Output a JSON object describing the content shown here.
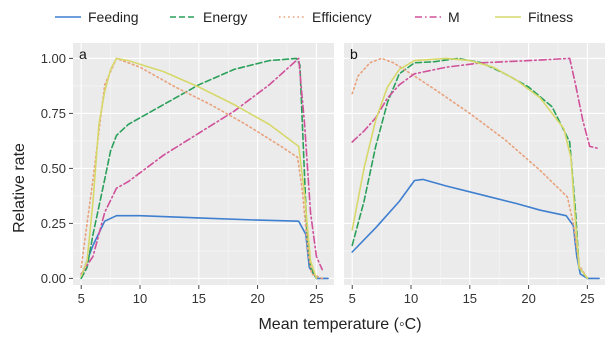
{
  "chart_data": {
    "type": "line",
    "xlabel": "Mean temperature (◦C)",
    "ylabel": "Relative rate",
    "xlim": [
      4.3,
      26.5
    ],
    "ylim": [
      -0.03,
      1.07
    ],
    "x_ticks": [
      5,
      10,
      15,
      20,
      25
    ],
    "y_ticks": [
      0.0,
      0.25,
      0.5,
      0.75,
      1.0
    ],
    "y_tick_labels": [
      "0.00",
      "0.25",
      "0.50",
      "0.75",
      "1.00"
    ],
    "legend": {
      "placement": "top",
      "entries": [
        {
          "name": "Feeding",
          "color": "#3f7fcf",
          "dash": "solid"
        },
        {
          "name": "Energy",
          "color": "#2aa05a",
          "dash": "dashed"
        },
        {
          "name": "Efficiency",
          "color": "#e8a17a",
          "dash": "dotted"
        },
        {
          "name": "M",
          "color": "#d0509a",
          "dash": "dashdot"
        },
        {
          "name": "Fitness",
          "color": "#d7d86a",
          "dash": "solid"
        }
      ]
    },
    "panels": [
      {
        "label": "a",
        "series": [
          {
            "name": "Feeding",
            "points": [
              [
                5,
                0.01
              ],
              [
                6,
                0.15
              ],
              [
                7,
                0.26
              ],
              [
                8,
                0.285
              ],
              [
                10,
                0.285
              ],
              [
                15,
                0.275
              ],
              [
                20,
                0.265
              ],
              [
                23.5,
                0.26
              ],
              [
                24.1,
                0.2
              ],
              [
                24.4,
                0.05
              ],
              [
                25,
                0.0
              ],
              [
                26,
                0.0
              ]
            ]
          },
          {
            "name": "Energy",
            "points": [
              [
                5,
                0.0
              ],
              [
                5.5,
                0.05
              ],
              [
                6,
                0.2
              ],
              [
                7,
                0.45
              ],
              [
                7.5,
                0.58
              ],
              [
                8,
                0.65
              ],
              [
                9,
                0.7
              ],
              [
                12,
                0.79
              ],
              [
                15,
                0.88
              ],
              [
                18,
                0.95
              ],
              [
                21,
                0.99
              ],
              [
                23.3,
                1.0
              ],
              [
                23.6,
                0.97
              ],
              [
                24.2,
                0.2
              ],
              [
                24.5,
                0.05
              ],
              [
                25,
                0.0
              ]
            ]
          },
          {
            "name": "Efficiency",
            "points": [
              [
                5,
                0.05
              ],
              [
                6,
                0.45
              ],
              [
                7,
                0.88
              ],
              [
                8,
                1.0
              ],
              [
                10,
                0.96
              ],
              [
                13,
                0.87
              ],
              [
                16,
                0.79
              ],
              [
                19,
                0.7
              ],
              [
                22,
                0.6
              ],
              [
                23.4,
                0.55
              ],
              [
                23.8,
                0.4
              ],
              [
                24.3,
                0.12
              ],
              [
                24.6,
                0.02
              ],
              [
                25.5,
                0.0
              ]
            ]
          },
          {
            "name": "M",
            "points": [
              [
                5,
                0.02
              ],
              [
                6,
                0.1
              ],
              [
                7,
                0.3
              ],
              [
                8,
                0.41
              ],
              [
                9,
                0.44
              ],
              [
                12,
                0.56
              ],
              [
                15,
                0.66
              ],
              [
                18,
                0.76
              ],
              [
                21,
                0.88
              ],
              [
                23.5,
                1.0
              ],
              [
                24,
                0.7
              ],
              [
                24.5,
                0.3
              ],
              [
                25,
                0.1
              ],
              [
                25.5,
                0.04
              ]
            ]
          },
          {
            "name": "Fitness",
            "points": [
              [
                5,
                0.01
              ],
              [
                5.5,
                0.08
              ],
              [
                6,
                0.35
              ],
              [
                6.5,
                0.7
              ],
              [
                7,
                0.85
              ],
              [
                7.5,
                0.95
              ],
              [
                8,
                1.0
              ],
              [
                9,
                0.99
              ],
              [
                12,
                0.94
              ],
              [
                15,
                0.87
              ],
              [
                18,
                0.79
              ],
              [
                21,
                0.7
              ],
              [
                23.5,
                0.6
              ],
              [
                24,
                0.38
              ],
              [
                24.5,
                0.08
              ],
              [
                25,
                0.0
              ]
            ]
          }
        ]
      },
      {
        "label": "b",
        "series": [
          {
            "name": "Feeding",
            "points": [
              [
                5,
                0.12
              ],
              [
                7,
                0.23
              ],
              [
                9,
                0.35
              ],
              [
                10.3,
                0.445
              ],
              [
                11,
                0.45
              ],
              [
                13,
                0.42
              ],
              [
                16,
                0.38
              ],
              [
                19,
                0.34
              ],
              [
                21,
                0.31
              ],
              [
                23.2,
                0.285
              ],
              [
                23.8,
                0.24
              ],
              [
                24.1,
                0.1
              ],
              [
                24.4,
                0.02
              ],
              [
                25,
                0.0
              ],
              [
                26,
                0.0
              ]
            ]
          },
          {
            "name": "Energy",
            "points": [
              [
                5,
                0.15
              ],
              [
                6,
                0.35
              ],
              [
                7,
                0.6
              ],
              [
                8,
                0.8
              ],
              [
                9,
                0.93
              ],
              [
                10.3,
                0.98
              ],
              [
                12,
                0.985
              ],
              [
                14,
                1.0
              ],
              [
                16,
                0.98
              ],
              [
                18,
                0.93
              ],
              [
                20,
                0.87
              ],
              [
                22,
                0.78
              ],
              [
                23.5,
                0.62
              ],
              [
                24,
                0.3
              ],
              [
                24.3,
                0.05
              ],
              [
                25,
                0.0
              ]
            ]
          },
          {
            "name": "Efficiency",
            "points": [
              [
                5,
                0.84
              ],
              [
                5.5,
                0.92
              ],
              [
                6.5,
                0.98
              ],
              [
                7.5,
                1.0
              ],
              [
                8.5,
                0.98
              ],
              [
                10,
                0.93
              ],
              [
                12,
                0.86
              ],
              [
                15,
                0.75
              ],
              [
                18,
                0.63
              ],
              [
                21,
                0.49
              ],
              [
                23.3,
                0.37
              ],
              [
                23.8,
                0.25
              ],
              [
                24.3,
                0.06
              ],
              [
                25,
                0.0
              ]
            ]
          },
          {
            "name": "M",
            "points": [
              [
                5,
                0.62
              ],
              [
                6,
                0.67
              ],
              [
                7,
                0.73
              ],
              [
                8,
                0.82
              ],
              [
                9,
                0.88
              ],
              [
                10.3,
                0.93
              ],
              [
                13,
                0.96
              ],
              [
                16,
                0.98
              ],
              [
                20,
                0.99
              ],
              [
                23.5,
                1.0
              ],
              [
                24,
                0.88
              ],
              [
                24.6,
                0.72
              ],
              [
                25.2,
                0.6
              ],
              [
                26,
                0.59
              ]
            ]
          },
          {
            "name": "Fitness",
            "points": [
              [
                5,
                0.22
              ],
              [
                6,
                0.5
              ],
              [
                7,
                0.72
              ],
              [
                8,
                0.87
              ],
              [
                9,
                0.95
              ],
              [
                10.3,
                0.99
              ],
              [
                13,
                1.0
              ],
              [
                15,
                0.99
              ],
              [
                17,
                0.96
              ],
              [
                19,
                0.9
              ],
              [
                21,
                0.82
              ],
              [
                23,
                0.68
              ],
              [
                23.6,
                0.55
              ],
              [
                24,
                0.25
              ],
              [
                24.3,
                0.05
              ],
              [
                25,
                0.0
              ]
            ]
          }
        ]
      }
    ]
  }
}
